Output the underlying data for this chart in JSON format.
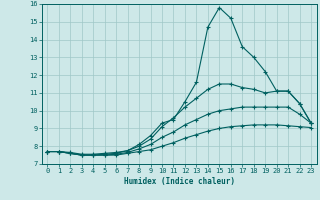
{
  "xlabel": "Humidex (Indice chaleur)",
  "xlim": [
    -0.5,
    23.5
  ],
  "ylim": [
    7,
    16
  ],
  "yticks": [
    7,
    8,
    9,
    10,
    11,
    12,
    13,
    14,
    15,
    16
  ],
  "xticks": [
    0,
    1,
    2,
    3,
    4,
    5,
    6,
    7,
    8,
    9,
    10,
    11,
    12,
    13,
    14,
    15,
    16,
    17,
    18,
    19,
    20,
    21,
    22,
    23
  ],
  "bg_color": "#cde8e8",
  "line_color": "#006060",
  "grid_color": "#a0c8c8",
  "series": [
    {
      "x": [
        0,
        1,
        2,
        3,
        4,
        5,
        6,
        7,
        8,
        9,
        10,
        11,
        12,
        13,
        14,
        15,
        16,
        17,
        18,
        19,
        20,
        21,
        22,
        23
      ],
      "y": [
        7.7,
        7.7,
        7.65,
        7.55,
        7.55,
        7.6,
        7.65,
        7.75,
        8.1,
        8.6,
        9.3,
        9.5,
        10.5,
        11.6,
        14.7,
        15.8,
        15.2,
        13.6,
        13.0,
        12.2,
        11.1,
        11.1,
        10.4,
        9.3
      ]
    },
    {
      "x": [
        0,
        1,
        2,
        3,
        4,
        5,
        6,
        7,
        8,
        9,
        10,
        11,
        12,
        13,
        14,
        15,
        16,
        17,
        18,
        19,
        20,
        21,
        22,
        23
      ],
      "y": [
        7.7,
        7.7,
        7.6,
        7.5,
        7.5,
        7.55,
        7.6,
        7.75,
        8.0,
        8.4,
        9.1,
        9.6,
        10.2,
        10.7,
        11.2,
        11.5,
        11.5,
        11.3,
        11.2,
        11.0,
        11.1,
        11.1,
        10.4,
        9.3
      ]
    },
    {
      "x": [
        0,
        1,
        2,
        3,
        4,
        5,
        6,
        7,
        8,
        9,
        10,
        11,
        12,
        13,
        14,
        15,
        16,
        17,
        18,
        19,
        20,
        21,
        22,
        23
      ],
      "y": [
        7.7,
        7.7,
        7.6,
        7.5,
        7.5,
        7.5,
        7.55,
        7.65,
        7.85,
        8.1,
        8.5,
        8.8,
        9.2,
        9.5,
        9.8,
        10.0,
        10.1,
        10.2,
        10.2,
        10.2,
        10.2,
        10.2,
        9.8,
        9.3
      ]
    },
    {
      "x": [
        0,
        1,
        2,
        3,
        4,
        5,
        6,
        7,
        8,
        9,
        10,
        11,
        12,
        13,
        14,
        15,
        16,
        17,
        18,
        19,
        20,
        21,
        22,
        23
      ],
      "y": [
        7.7,
        7.7,
        7.6,
        7.5,
        7.5,
        7.5,
        7.5,
        7.6,
        7.7,
        7.8,
        8.0,
        8.2,
        8.45,
        8.65,
        8.85,
        9.0,
        9.1,
        9.15,
        9.2,
        9.2,
        9.2,
        9.15,
        9.1,
        9.05
      ]
    }
  ]
}
